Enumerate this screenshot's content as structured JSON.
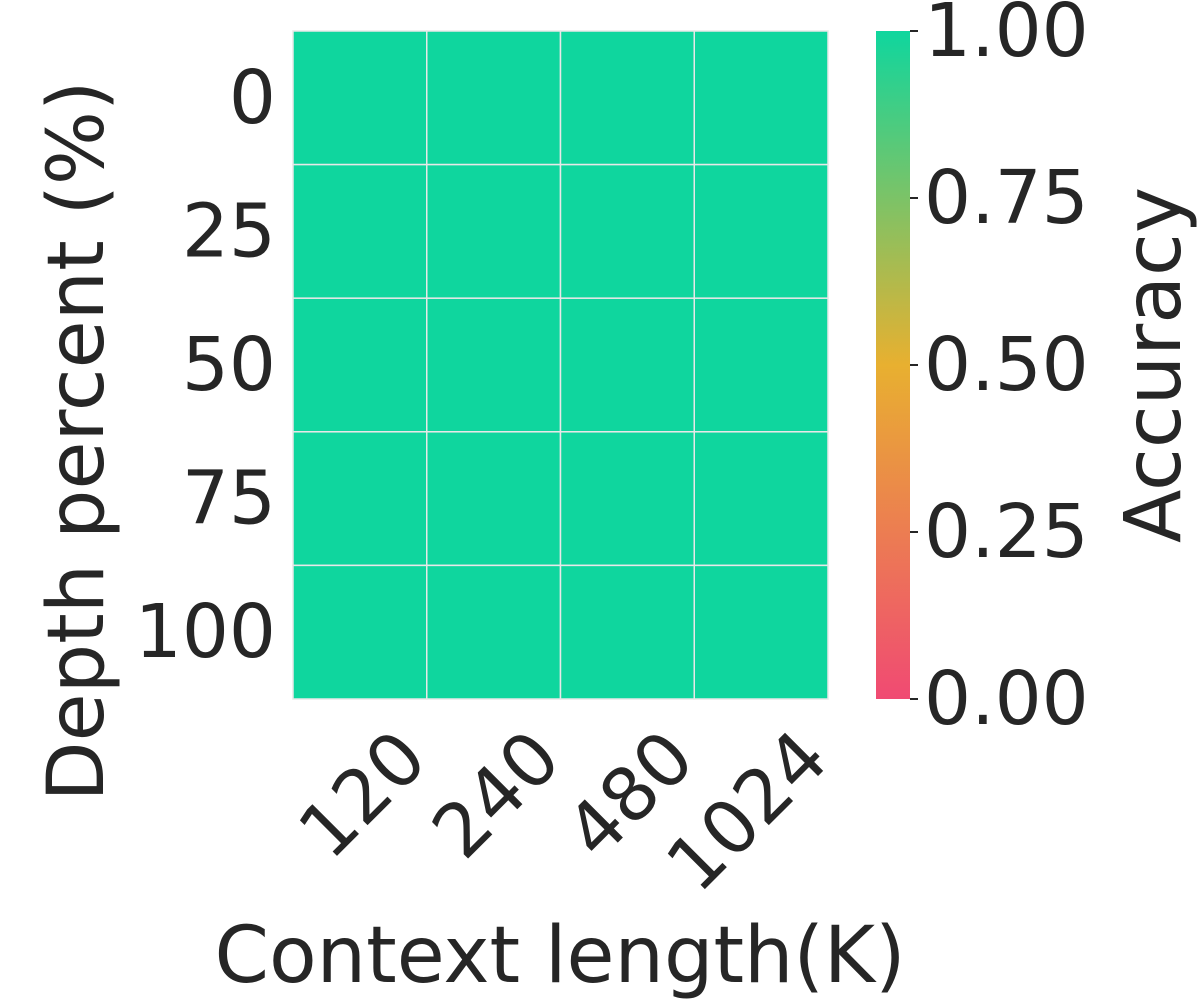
{
  "chart_data": {
    "type": "heatmap",
    "title": "",
    "xlabel": "Context length(K)",
    "ylabel": "Depth percent (%)",
    "x_categories": [
      "120",
      "240",
      "480",
      "1024"
    ],
    "y_categories": [
      "0",
      "25",
      "50",
      "75",
      "100"
    ],
    "values": [
      [
        1.0,
        1.0,
        1.0,
        1.0
      ],
      [
        1.0,
        1.0,
        1.0,
        1.0
      ],
      [
        1.0,
        1.0,
        1.0,
        1.0
      ],
      [
        1.0,
        1.0,
        1.0,
        1.0
      ],
      [
        1.0,
        1.0,
        1.0,
        1.0
      ]
    ],
    "colorbar": {
      "label": "Accuracy",
      "range": [
        0.0,
        1.0
      ],
      "ticks": [
        "0.00",
        "0.25",
        "0.50",
        "0.75",
        "1.00"
      ],
      "tick_values": [
        0.0,
        0.25,
        0.5,
        0.75,
        1.0
      ],
      "colors": [
        "#f04a73",
        "#e8b030",
        "#0fd69e"
      ]
    },
    "grid": true,
    "cell_border_color": "#e8e8e8"
  }
}
